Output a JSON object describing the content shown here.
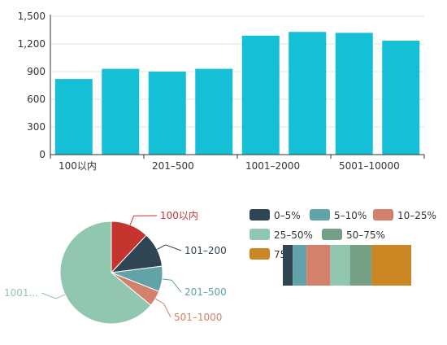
{
  "bar_chart": {
    "y_ticks": [
      "0",
      "300",
      "600",
      "900",
      "1,200",
      "1,500"
    ],
    "x_labels": [
      "100以内",
      "201–500",
      "1001–2000",
      "5001–10000"
    ]
  },
  "pie_chart": {
    "labels": [
      "100以内",
      "101–200",
      "201–500",
      "501–1000",
      "1001..."
    ]
  },
  "legend": {
    "items": [
      "0–5%",
      "5–10%",
      "10–25%",
      "25–50%",
      "50–75%",
      "75–100%"
    ]
  },
  "colors": {
    "bar": "#15c0d7",
    "axis": "#333333",
    "grid": "#e3e3e3",
    "pie": [
      "#c5342f",
      "#2f4554",
      "#62a2a9",
      "#d3816a",
      "#91c7ae"
    ],
    "legend": [
      "#2f4554",
      "#62a2a9",
      "#d3816a",
      "#91c7ae",
      "#749f83",
      "#ca8622"
    ]
  },
  "chart_data": [
    {
      "type": "bar",
      "categories": [
        "100以内",
        "",
        "201–500",
        "",
        "1001–2000",
        "",
        "5001–10000",
        ""
      ],
      "values": [
        820,
        930,
        900,
        930,
        1290,
        1330,
        1320,
        1235
      ],
      "ylim": [
        0,
        1500
      ],
      "grid": true
    },
    {
      "type": "pie",
      "labels": [
        "100以内",
        "101–200",
        "201–500",
        "501–1000",
        "1001..."
      ],
      "values": [
        12,
        11,
        8,
        5,
        64
      ]
    },
    {
      "type": "bar",
      "stacked": true,
      "series": [
        {
          "name": "0–5%",
          "values": [
            5
          ]
        },
        {
          "name": "5–10%",
          "values": [
            7
          ]
        },
        {
          "name": "10–25%",
          "values": [
            12
          ]
        },
        {
          "name": "25–50%",
          "values": [
            10
          ]
        },
        {
          "name": "50–75%",
          "values": [
            11
          ]
        },
        {
          "name": "75–100%",
          "values": [
            20
          ]
        }
      ]
    }
  ]
}
